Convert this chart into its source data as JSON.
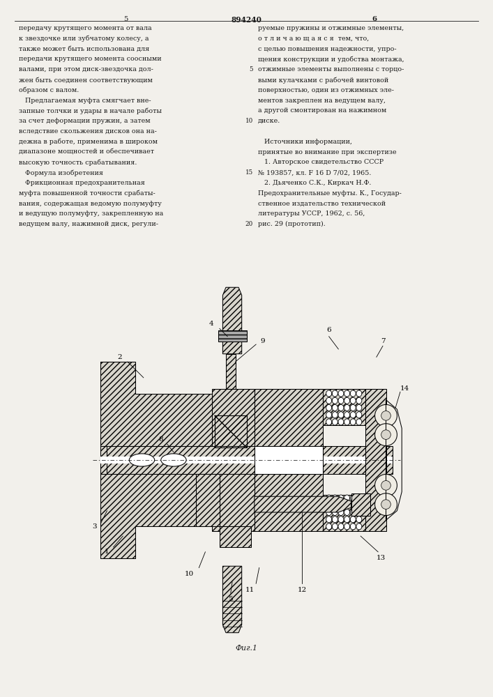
{
  "page_width": 7.07,
  "page_height": 10.0,
  "bg_color": "#f2f0eb",
  "text_color": "#1a1a1a",
  "header_patent_num": "894240",
  "header_page_left": "5",
  "header_page_right": "6",
  "col1_lines": [
    "передачу крутящего момента от вала",
    "к звездочке или зубчатому колесу, а",
    "также может быть использована для",
    "передачи крутящего момента соосными",
    "валами, при этом диск-звездочка дол-",
    "жен быть соединен соответствующим",
    "образом с валом.",
    "   Предлагаемая муфта смягчает вне-",
    "запные толчки и удары в начале работы",
    "за счет деформации пружин, а затем",
    "вследствие скольжения дисков она на-",
    "дежна в работе, применима в широком",
    "диапазоне мощностей и обеспечивает",
    "высокую точность срабатывания.",
    "   Формула изобретения",
    "   Фрикционная предохранительная",
    "муфта повышенной точности срабаты-",
    "вания, содержащая ведомую полумуфту",
    "и ведущую полумуфту, закрепленную на",
    "ведущем валу, нажимной диск, регули-"
  ],
  "col2_lines": [
    "руемые пружины и отжимные элементы,",
    "о т л и ч а ю щ а я с я  тем, что,",
    "с целью повышения надежности, упро-",
    "щения конструкции и удобства монтажа,",
    "отжимные элементы выполнены с торцо-",
    "выми кулачками с рабочей винтовой",
    "поверхностью, один из отжимных эле-",
    "ментов закреплен на ведущем валу,",
    "а другой смонтирован на нажимном",
    "диске.",
    "",
    "   Источники информации,",
    "принятые во внимание при экспертизе",
    "   1. Авторское свидетельство СССР",
    "№ 193857, кл. F 16 D 7/02, 1965.",
    "   2. Дьяченко С.К., Киркач Н.Ф.",
    "Предохранительные муфты. К., Государ-",
    "ственное издательство технической",
    "литературы УССР, 1962, с. 56,",
    "рис. 29 (прототип)."
  ],
  "line_numbers": {
    "5": 5,
    "10": 10,
    "15": 15,
    "20": 20
  },
  "fig_caption": "Фиг.1"
}
